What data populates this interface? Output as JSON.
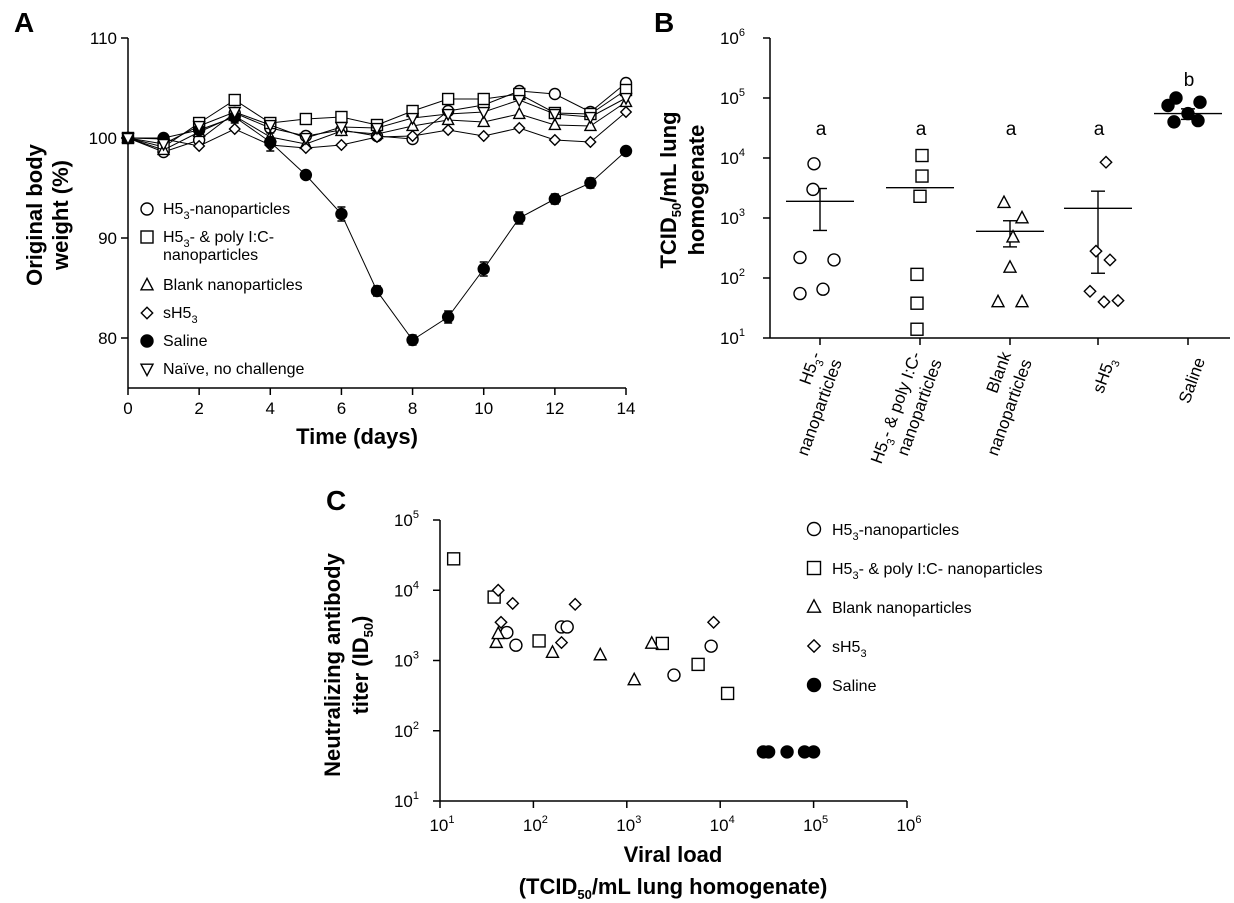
{
  "chart_data": [
    {
      "panel": "A",
      "type": "line",
      "xlabel": "Time (days)",
      "ylabel_lines": [
        "Original body",
        "weight (%)"
      ],
      "xlim": [
        0,
        14
      ],
      "ylim": [
        75,
        110
      ],
      "x_ticks": [
        "0",
        "2",
        "4",
        "6",
        "8",
        "10",
        "12",
        "14"
      ],
      "y_ticks": [
        "80",
        "90",
        "100",
        "110"
      ],
      "x": [
        0,
        1,
        2,
        3,
        4,
        5,
        6,
        7,
        8,
        9,
        10,
        11,
        12,
        13,
        14
      ],
      "series": [
        {
          "name": "H5₃-nanoparticles",
          "marker": "circle",
          "values": [
            100,
            98.6,
            99.8,
            102.5,
            101.0,
            100.2,
            100.8,
            100.2,
            99.9,
            102.7,
            103.3,
            104.7,
            104.4,
            102.6,
            105.5
          ]
        },
        {
          "name": "H5₃- & poly I:C- nanoparticles",
          "marker": "square",
          "values": [
            100,
            99.1,
            101.5,
            103.8,
            101.5,
            101.9,
            102.1,
            101.3,
            102.7,
            103.9,
            103.9,
            104.4,
            102.5,
            102.4,
            104.8
          ]
        },
        {
          "name": "Blank nanoparticles",
          "marker": "triangle",
          "values": [
            100,
            98.8,
            100.6,
            102.2,
            100.1,
            99.4,
            100.7,
            100.4,
            101.2,
            101.8,
            101.6,
            102.4,
            101.3,
            101.2,
            103.6
          ]
        },
        {
          "name": "sH5₃",
          "marker": "diamond",
          "values": [
            100,
            99.9,
            99.2,
            100.9,
            99.3,
            99.0,
            99.3,
            100.1,
            100.2,
            100.8,
            100.2,
            101.0,
            99.8,
            99.6,
            102.6
          ]
        },
        {
          "name": "Saline",
          "marker": "filled-circle",
          "values": [
            100,
            100.0,
            100.8,
            102.1,
            99.6,
            96.3,
            92.4,
            84.7,
            79.8,
            82.1,
            86.9,
            92.0,
            93.9,
            95.5,
            98.7
          ],
          "errors": [
            0,
            0.2,
            0.4,
            0.6,
            0.9,
            0.3,
            0.7,
            0.5,
            0.5,
            0.6,
            0.7,
            0.6,
            0.5,
            0.5,
            0.3
          ]
        },
        {
          "name": "Naïve, no challenge",
          "marker": "triangle-down",
          "values": [
            100,
            99.4,
            101.2,
            102.6,
            101.3,
            100.0,
            101.1,
            101.0,
            102.0,
            102.4,
            102.6,
            103.8,
            102.4,
            102.1,
            104.0
          ]
        }
      ]
    },
    {
      "panel": "B",
      "type": "scatter",
      "ylabel_lines": [
        "TCID₅₀/mL lung",
        "homogenate"
      ],
      "yscale": "log",
      "ylim": [
        10,
        1000000
      ],
      "y_ticks": [
        "10¹",
        "10²",
        "10³",
        "10⁴",
        "10⁵",
        "10⁶"
      ],
      "categories": [
        {
          "label_lines": [
            "H5₃-",
            "nanoparticles"
          ],
          "marker": "circle",
          "letter": "a",
          "mean": 1900,
          "err_low": 620,
          "err_high": 3100,
          "values": [
            8000,
            3000,
            220,
            200,
            55,
            65
          ]
        },
        {
          "label_lines": [
            "H5₃- & poly I:C-",
            "nanoparticles"
          ],
          "marker": "square",
          "letter": "a",
          "mean": 3200,
          "err_low": 3200,
          "err_high": 3200,
          "values": [
            11000,
            5000,
            2300,
            115,
            38,
            14
          ]
        },
        {
          "label_lines": [
            "Blank",
            "nanoparticles"
          ],
          "marker": "triangle",
          "letter": "a",
          "mean": 600,
          "err_low": 330,
          "err_high": 900,
          "values": [
            1800,
            1000,
            480,
            150,
            40,
            40
          ]
        },
        {
          "label_lines": [
            "sH5₃"
          ],
          "marker": "diamond",
          "letter": "a",
          "mean": 1450,
          "err_low": 120,
          "err_high": 2800,
          "values": [
            8500,
            280,
            200,
            60,
            40,
            42
          ]
        },
        {
          "label_lines": [
            "Saline"
          ],
          "marker": "filled-circle",
          "letter": "b",
          "mean": 55000,
          "err_low": 44000,
          "err_high": 66000,
          "values": [
            100000,
            85000,
            75000,
            55000,
            40000,
            42000
          ]
        }
      ]
    },
    {
      "panel": "C",
      "type": "scatter",
      "xscale": "log",
      "yscale": "log",
      "xlim": [
        10,
        1000000
      ],
      "ylim": [
        10,
        100000
      ],
      "xlabel_lines": [
        "Viral load",
        "(TCID₅₀/mL lung homogenate)"
      ],
      "ylabel_lines": [
        "Neutralizing antibody",
        "titer (ID₅₀)"
      ],
      "x_ticks": [
        "10¹",
        "10²",
        "10³",
        "10⁴",
        "10⁵",
        "10⁶"
      ],
      "y_ticks": [
        "10¹",
        "10²",
        "10³",
        "10⁴",
        "10⁵"
      ],
      "series": [
        {
          "name": "H5₃-nanoparticles",
          "marker": "circle",
          "points": [
            [
              52,
              2500
            ],
            [
              65,
              1650
            ],
            [
              200,
              3000
            ],
            [
              230,
              3000
            ],
            [
              3200,
              620
            ],
            [
              8000,
              1600
            ]
          ]
        },
        {
          "name": "H5₃- & poly I:C- nanoparticles",
          "marker": "square",
          "points": [
            [
              14,
              28000
            ],
            [
              38,
              8000
            ],
            [
              115,
              1900
            ],
            [
              2400,
              1750
            ],
            [
              5800,
              880
            ],
            [
              12000,
              340
            ]
          ]
        },
        {
          "name": "Blank nanoparticles",
          "marker": "triangle",
          "points": [
            [
              40,
              1800
            ],
            [
              42,
              2400
            ],
            [
              160,
              1300
            ],
            [
              520,
              1200
            ],
            [
              1200,
              530
            ],
            [
              1850,
              1750
            ]
          ]
        },
        {
          "name": "sH5₃",
          "marker": "diamond",
          "points": [
            [
              42,
              10000
            ],
            [
              45,
              3500
            ],
            [
              60,
              6500
            ],
            [
              200,
              1800
            ],
            [
              280,
              6300
            ],
            [
              8500,
              3500
            ]
          ]
        },
        {
          "name": "Saline",
          "marker": "filled-circle",
          "points": [
            [
              29000,
              50
            ],
            [
              33000,
              50
            ],
            [
              52000,
              50
            ],
            [
              80000,
              50
            ],
            [
              100000,
              50
            ]
          ]
        }
      ]
    }
  ],
  "panel_labels": {
    "a": "A",
    "b": "B",
    "c": "C"
  },
  "legend_a": [
    {
      "marker": "circle",
      "lines": [
        [
          "H5",
          "3",
          "-nanoparticles"
        ]
      ]
    },
    {
      "marker": "square",
      "lines": [
        [
          "H5",
          "3",
          "- & poly I:C-"
        ],
        [
          "nanoparticles",
          "",
          ""
        ]
      ]
    },
    {
      "marker": "triangle",
      "lines": [
        [
          "Blank nanoparticles",
          "",
          ""
        ]
      ]
    },
    {
      "marker": "diamond",
      "lines": [
        [
          "sH5",
          "3",
          ""
        ]
      ]
    },
    {
      "marker": "filled-circle",
      "lines": [
        [
          "Saline",
          "",
          ""
        ]
      ]
    },
    {
      "marker": "triangle-down",
      "lines": [
        [
          "Naïve, no challenge",
          "",
          ""
        ]
      ]
    }
  ],
  "legend_c": [
    {
      "marker": "circle",
      "parts": [
        "H5",
        "3",
        "-nanoparticles"
      ]
    },
    {
      "marker": "square",
      "parts": [
        "H5",
        "3",
        "- & poly I:C- nanoparticles"
      ]
    },
    {
      "marker": "triangle",
      "parts": [
        "Blank nanoparticles",
        "",
        ""
      ]
    },
    {
      "marker": "diamond",
      "parts": [
        "sH5",
        "3",
        ""
      ]
    },
    {
      "marker": "filled-circle",
      "parts": [
        "Saline",
        "",
        ""
      ]
    }
  ],
  "b_ylabel_parts": {
    "line1": [
      "TCID",
      "50",
      "/mL lung"
    ],
    "line2": "homogenate"
  },
  "b_xlabels": [
    {
      "lines": [
        [
          "H5",
          "3",
          "-"
        ],
        [
          "nanoparticles",
          "",
          ""
        ]
      ]
    },
    {
      "lines": [
        [
          "H5",
          "3",
          "- & poly I:C-"
        ],
        [
          "nanoparticles",
          "",
          ""
        ]
      ]
    },
    {
      "lines": [
        [
          "Blank",
          "",
          ""
        ],
        [
          "nanoparticles",
          "",
          ""
        ]
      ]
    },
    {
      "lines": [
        [
          "sH5",
          "3",
          ""
        ]
      ]
    },
    {
      "lines": [
        [
          "Saline",
          "",
          ""
        ]
      ]
    }
  ],
  "c_xlabel_parts": {
    "line1": "Viral load",
    "line2": [
      "(TCID",
      "50",
      "/mL lung homogenate)"
    ]
  },
  "c_ylabel_parts": {
    "line1": "Neutralizing antibody",
    "line2": [
      "titer (ID",
      "50",
      ")"
    ]
  },
  "log_tick_parts": {
    "b": [
      [
        "10",
        "1"
      ],
      [
        "10",
        "2"
      ],
      [
        "10",
        "3"
      ],
      [
        "10",
        "4"
      ],
      [
        "10",
        "5"
      ],
      [
        "10",
        "6"
      ]
    ],
    "cx": [
      [
        "10",
        "1"
      ],
      [
        "10",
        "2"
      ],
      [
        "10",
        "3"
      ],
      [
        "10",
        "4"
      ],
      [
        "10",
        "5"
      ],
      [
        "10",
        "6"
      ]
    ],
    "cy": [
      [
        "10",
        "1"
      ],
      [
        "10",
        "2"
      ],
      [
        "10",
        "3"
      ],
      [
        "10",
        "4"
      ],
      [
        "10",
        "5"
      ]
    ]
  }
}
